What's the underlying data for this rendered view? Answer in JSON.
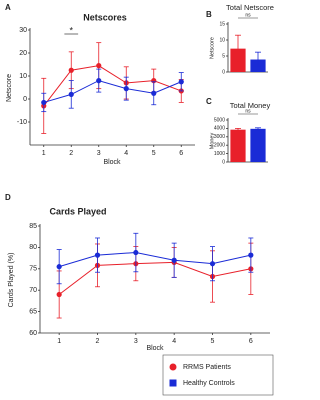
{
  "chart_data": [
    {
      "type": "line",
      "label": "A",
      "title": "Netscores",
      "xlabel": "Block",
      "ylabel": "Netscore",
      "x": [
        1,
        2,
        3,
        4,
        5,
        6
      ],
      "xlim": [
        0.5,
        6.5
      ],
      "xticks": [
        1,
        2,
        3,
        4,
        5,
        6
      ],
      "ylim": [
        -20,
        30
      ],
      "yticks": [
        -10,
        0,
        10,
        20,
        30
      ],
      "significance": "*",
      "series": [
        {
          "name": "RRMS Patients",
          "color": "#e8202a",
          "values": [
            -3,
            12.5,
            14.5,
            7,
            8,
            3.5
          ],
          "errors": [
            12,
            8,
            10,
            7,
            5,
            5
          ]
        },
        {
          "name": "Healthy Controls",
          "color": "#1a2bd6",
          "values": [
            -1.5,
            2,
            8,
            4.5,
            2.5,
            7.5
          ],
          "errors": [
            4,
            6,
            5,
            5,
            5,
            4
          ]
        }
      ]
    },
    {
      "type": "bar",
      "label": "B",
      "title": "Total Netscore",
      "ylabel": "Netscore",
      "categories": [
        null,
        null
      ],
      "ylim": [
        0,
        15
      ],
      "yticks": [
        0,
        5,
        10,
        15
      ],
      "significance": "ns",
      "colors": [
        "#e8202a",
        "#1a2bd6"
      ],
      "values": [
        7.3,
        3.9
      ],
      "errors": [
        4.2,
        2.3
      ]
    },
    {
      "type": "bar",
      "label": "C",
      "title": "Total Money",
      "ylabel": "Money",
      "categories": [
        null,
        null
      ],
      "ylim": [
        0,
        5000
      ],
      "yticks": [
        0,
        1000,
        2000,
        3000,
        4000,
        5000
      ],
      "significance": "ns",
      "colors": [
        "#e8202a",
        "#1a2bd6"
      ],
      "values": [
        3850,
        3950
      ],
      "errors": [
        150,
        120
      ]
    },
    {
      "type": "line",
      "label": "D",
      "title": "Cards Played",
      "xlabel": "Block",
      "ylabel": "Cards Played (%)",
      "x": [
        1,
        2,
        3,
        4,
        5,
        6
      ],
      "xlim": [
        0.5,
        6.5
      ],
      "xticks": [
        1,
        2,
        3,
        4,
        5,
        6
      ],
      "ylim": [
        60,
        85
      ],
      "yticks": [
        60,
        65,
        70,
        75,
        80,
        85
      ],
      "legend": "bottom-right",
      "series": [
        {
          "name": "RRMS Patients",
          "color": "#e8202a",
          "values": [
            69,
            75.8,
            76.2,
            76.5,
            73.2,
            75
          ],
          "errors": [
            5.5,
            5,
            4,
            3.5,
            6,
            6
          ]
        },
        {
          "name": "Healthy Controls",
          "color": "#1a2bd6",
          "values": [
            75.5,
            78.2,
            78.8,
            77,
            76.2,
            78.2
          ],
          "errors": [
            4,
            4,
            4.5,
            4,
            4,
            4
          ]
        }
      ]
    }
  ]
}
